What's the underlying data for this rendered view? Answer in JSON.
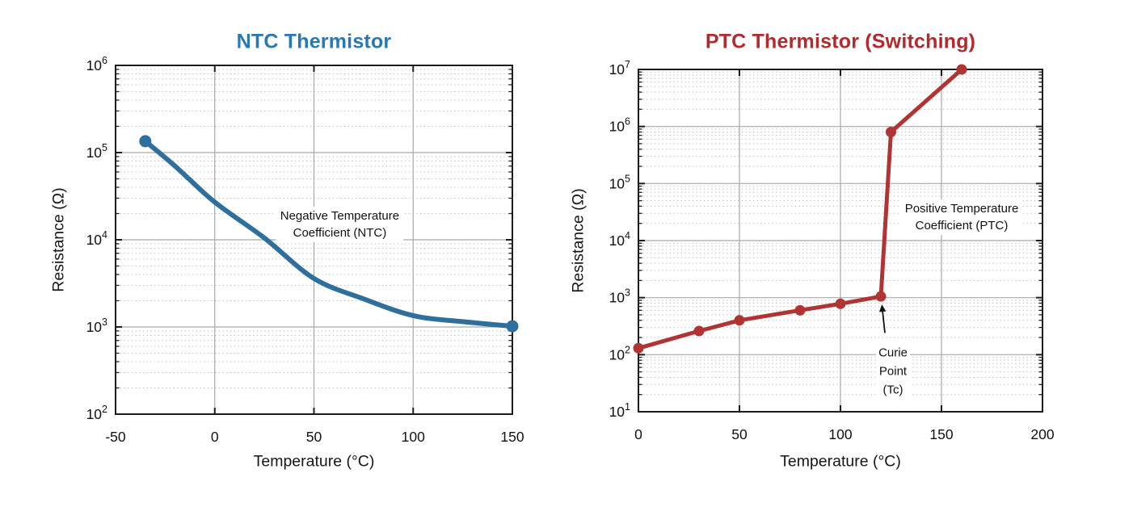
{
  "page": {
    "background_color": "#ffffff",
    "text_color": "#161616"
  },
  "chart_data": [
    {
      "type": "line",
      "title": "NTC Thermistor",
      "title_color": "#2879b2",
      "line_color": "#2e6f9e",
      "xlabel": "Temperature (°C)",
      "ylabel": "Resistance (Ω)",
      "xlim": [
        -50,
        150
      ],
      "x_ticks": [
        -50,
        0,
        50,
        100,
        150
      ],
      "yscale": "log",
      "ylim": [
        100,
        1000000
      ],
      "y_tick_exponents": [
        2,
        3,
        4,
        5,
        6
      ],
      "grid": {
        "major": "solid",
        "log_minor": "dotted"
      },
      "legend": "none",
      "smooth": true,
      "markers": "endpoints",
      "x": [
        -35,
        -20,
        0,
        25,
        50,
        75,
        100,
        125,
        150
      ],
      "y": [
        135000,
        70000,
        27000,
        10500,
        3600,
        2100,
        1350,
        1150,
        1020
      ],
      "annotation": {
        "lines": [
          "Negative Temperature",
          "Coefficient (NTC)"
        ],
        "at_x": 63,
        "at_y": 15000
      }
    },
    {
      "type": "line",
      "title": "PTC Thermistor (Switching)",
      "title_color": "#b22a2e",
      "line_color": "#b13434",
      "xlabel": "Temperature (°C)",
      "ylabel": "Resistance (Ω)",
      "xlim": [
        0,
        200
      ],
      "x_ticks": [
        0,
        50,
        100,
        150,
        200
      ],
      "yscale": "log",
      "ylim": [
        10,
        10000000
      ],
      "y_tick_exponents": [
        1,
        2,
        3,
        4,
        5,
        6,
        7
      ],
      "grid": {
        "major": "solid",
        "log_minor": "dotted"
      },
      "legend": "none",
      "smooth": false,
      "markers": "all",
      "x": [
        0,
        30,
        50,
        80,
        100,
        120,
        125,
        160
      ],
      "y": [
        130,
        260,
        400,
        600,
        780,
        1050,
        800000,
        10000000
      ],
      "annotation": {
        "lines": [
          "Positive Temperature",
          "Coefficient (PTC)"
        ],
        "at_x": 160,
        "at_y": 26000
      },
      "curie_annotation": {
        "lines": [
          "Curie",
          "Point",
          "(Tc)"
        ],
        "at_x": 126,
        "at_y": 51,
        "arrow_from": [
          122,
          240
        ],
        "arrow_to": [
          120.5,
          760
        ],
        "points_to": {
          "x": 120,
          "y": 1050
        }
      }
    }
  ]
}
